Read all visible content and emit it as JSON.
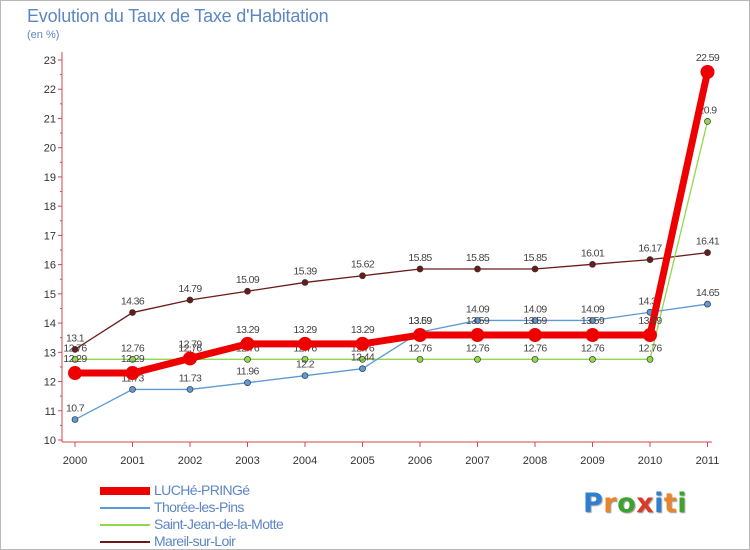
{
  "header": {
    "title": "Evolution du Taux de Taxe d'Habitation",
    "subtitle": "(en %)"
  },
  "chart_data": {
    "type": "line",
    "title": "Evolution du Taux de Taxe d'Habitation",
    "ylabel": "(en %)",
    "xlabel": "",
    "ylim": [
      10,
      23
    ],
    "yticks": [
      10,
      11,
      12,
      13,
      14,
      15,
      16,
      17,
      18,
      19,
      20,
      21,
      22,
      23
    ],
    "grid": false,
    "x": [
      "2000",
      "2001",
      "2002",
      "2003",
      "2004",
      "2005",
      "2006",
      "2007",
      "2008",
      "2009",
      "2010",
      "2011"
    ],
    "series": [
      {
        "name": "Mareil-sur-Loir",
        "color": "#6b1a1a",
        "values": [
          13.1,
          14.36,
          14.79,
          15.09,
          15.39,
          15.62,
          15.85,
          15.85,
          15.85,
          16.01,
          16.17,
          16.41
        ],
        "labels": [
          "13.1",
          "14.36",
          "14.79",
          "15.09",
          "15.39",
          "15.62",
          "15.85",
          "15.85",
          "15.85",
          "16.01",
          "16.17",
          "16.41"
        ]
      },
      {
        "name": "Saint-Jean-de-la-Motte",
        "color": "#8fd94a",
        "values": [
          12.76,
          12.76,
          12.76,
          12.76,
          12.76,
          12.76,
          12.76,
          12.76,
          12.76,
          12.76,
          12.76,
          20.9
        ],
        "labels": [
          "12.76",
          "12.76",
          "12.76",
          "12.76",
          "12.76",
          "12.76",
          "12.76",
          "12.76",
          "12.76",
          "12.76",
          "12.76",
          "20.9"
        ]
      },
      {
        "name": "Thorée-les-Pins",
        "color": "#5b9ad6",
        "values": [
          10.7,
          11.73,
          11.73,
          11.96,
          12.2,
          12.44,
          13.69,
          14.09,
          14.09,
          14.09,
          14.37,
          14.65
        ],
        "labels": [
          "10.7",
          "11.73",
          "11.73",
          "11.96",
          "12.2",
          "12.44",
          "13.69",
          "14.09",
          "14.09",
          "14.09",
          "14.37",
          "14.65"
        ]
      },
      {
        "name": "LUCHé-PRINGé",
        "color": "#ee0000",
        "values": [
          12.29,
          12.29,
          12.79,
          13.29,
          13.29,
          13.29,
          13.59,
          13.59,
          13.59,
          13.59,
          13.59,
          22.59
        ],
        "labels": [
          "12.29",
          "12.29",
          "12.79",
          "13.29",
          "13.29",
          "13.29",
          "13.59",
          "13.59",
          "13.59",
          "13.59",
          "13.59",
          "22.59"
        ]
      }
    ]
  },
  "legend": {
    "items": [
      {
        "label": "LUCHé-PRINGé",
        "color": "#ee0000"
      },
      {
        "label": "Thorée-les-Pins",
        "color": "#5b9ad6"
      },
      {
        "label": "Saint-Jean-de-la-Motte",
        "color": "#8fd94a"
      },
      {
        "label": "Mareil-sur-Loir",
        "color": "#6b1a1a"
      }
    ]
  },
  "logo": {
    "letters": [
      "P",
      "r",
      "o",
      "x",
      "i",
      "t",
      "i"
    ],
    "colors": [
      "#2f7fd0",
      "#e8852a",
      "#3fa22f",
      "#d93a2a",
      "#2f7fd0",
      "#e8852a",
      "#3fa22f"
    ]
  }
}
